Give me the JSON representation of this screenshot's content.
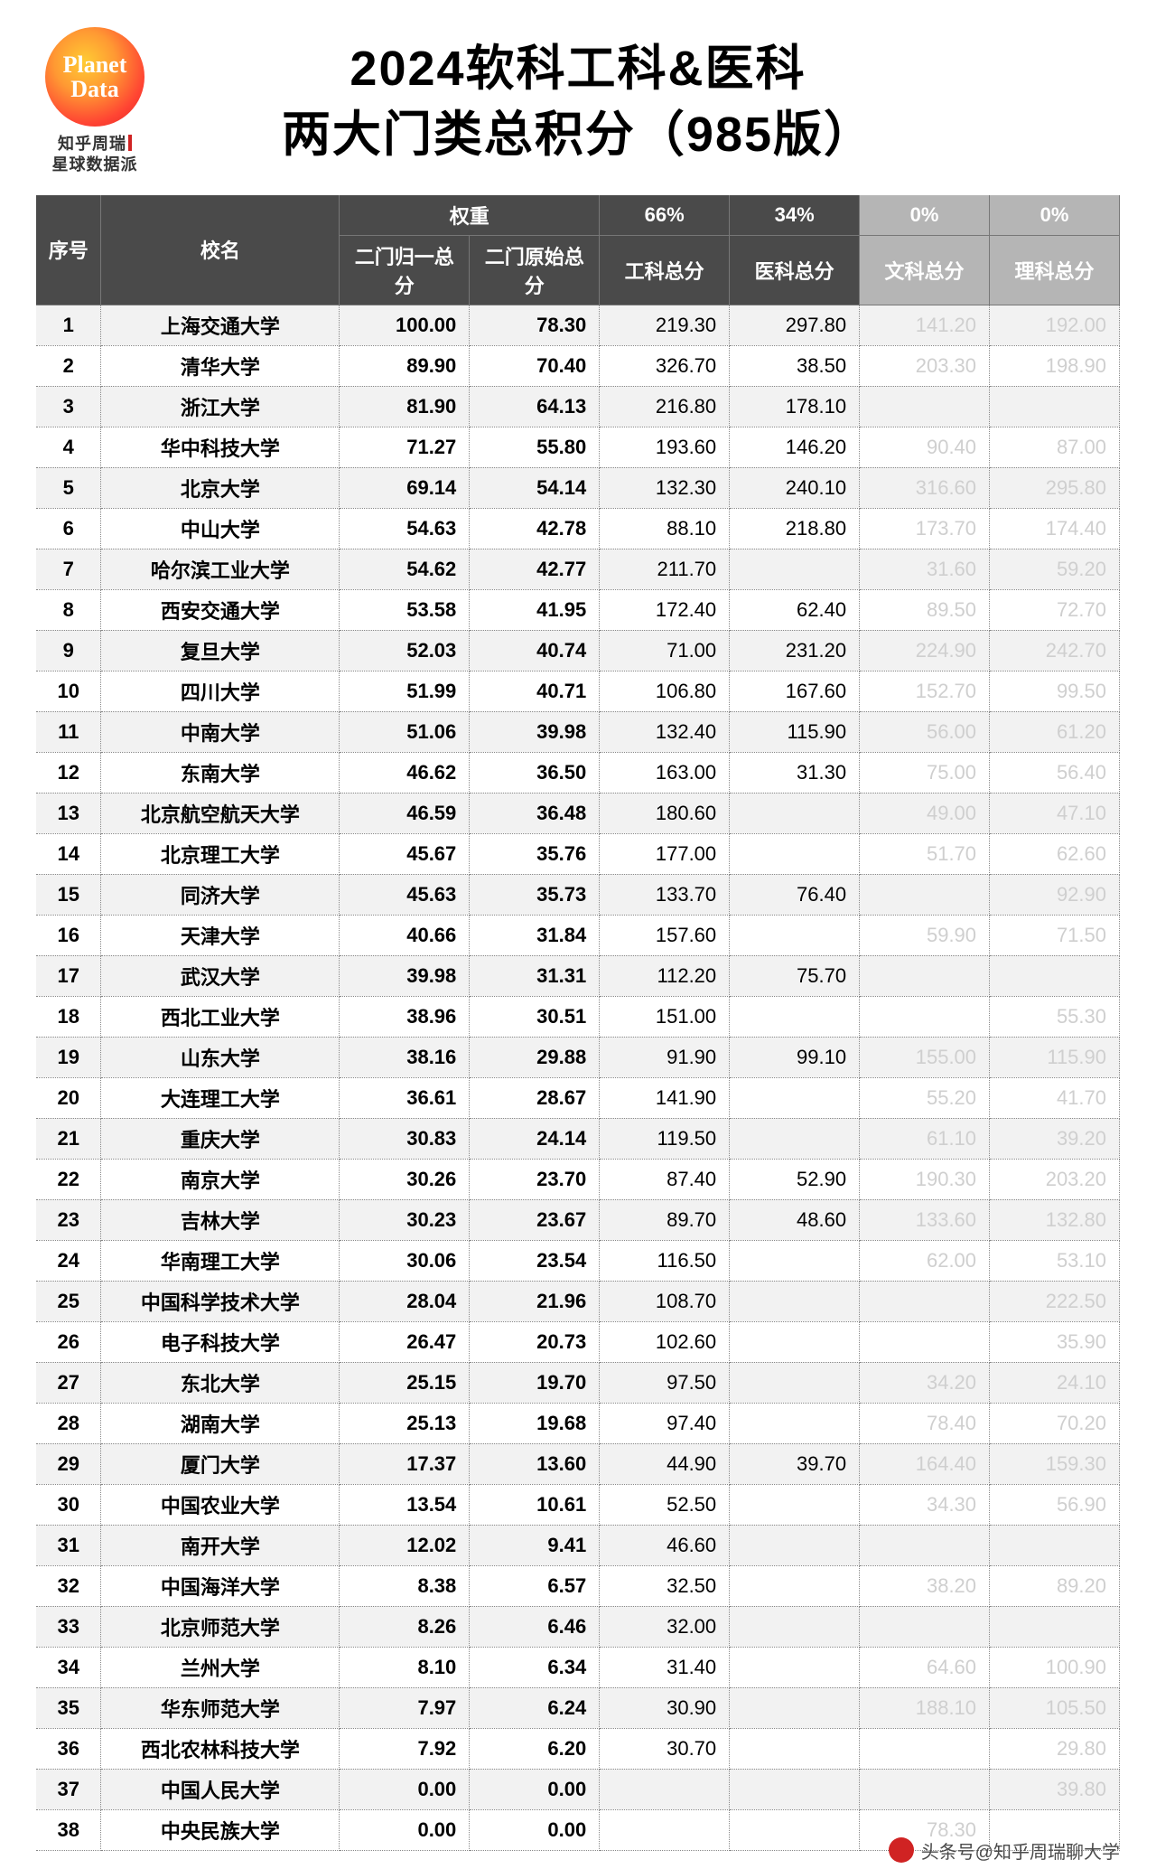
{
  "logo": {
    "circle_line1": "Planet",
    "circle_line2": "Data",
    "sub_line1": "知乎周瑞",
    "sub_line2": "星球数据派"
  },
  "title": {
    "line1": "2024软科工科&医科",
    "line2": "两大门类总积分（985版）"
  },
  "header": {
    "idx": "序号",
    "name": "校名",
    "weight_group": "权重",
    "w1": "二门归一总分",
    "w2": "二门原始总分",
    "eng_pct": "66%",
    "med_pct": "34%",
    "eng": "工科总分",
    "med": "医科总分",
    "lit_pct": "0%",
    "sci_pct": "0%",
    "lit": "文科总分",
    "sci": "理科总分"
  },
  "table": {
    "style": {
      "header_bg": "#4a4a4a",
      "header_fg": "#ffffff",
      "faded_header_bg": "#b5b5b5",
      "row_alt_bg": "#f2f2f2",
      "row_bg": "#ffffff",
      "faded_fg": "#cfcfcf",
      "border_color": "#888888",
      "font_size": 22,
      "bold_cols": [
        "idx",
        "name",
        "w1",
        "w2"
      ],
      "faded_cols": [
        "lit",
        "sci"
      ]
    },
    "columns": [
      "idx",
      "name",
      "w1",
      "w2",
      "eng",
      "med",
      "lit",
      "sci"
    ],
    "rows": [
      {
        "idx": "1",
        "name": "上海交通大学",
        "w1": "100.00",
        "w2": "78.30",
        "eng": "219.30",
        "med": "297.80",
        "lit": "141.20",
        "sci": "192.00"
      },
      {
        "idx": "2",
        "name": "清华大学",
        "w1": "89.90",
        "w2": "70.40",
        "eng": "326.70",
        "med": "38.50",
        "lit": "203.30",
        "sci": "198.90"
      },
      {
        "idx": "3",
        "name": "浙江大学",
        "w1": "81.90",
        "w2": "64.13",
        "eng": "216.80",
        "med": "178.10",
        "lit": "",
        "sci": ""
      },
      {
        "idx": "4",
        "name": "华中科技大学",
        "w1": "71.27",
        "w2": "55.80",
        "eng": "193.60",
        "med": "146.20",
        "lit": "90.40",
        "sci": "87.00"
      },
      {
        "idx": "5",
        "name": "北京大学",
        "w1": "69.14",
        "w2": "54.14",
        "eng": "132.30",
        "med": "240.10",
        "lit": "316.60",
        "sci": "295.80"
      },
      {
        "idx": "6",
        "name": "中山大学",
        "w1": "54.63",
        "w2": "42.78",
        "eng": "88.10",
        "med": "218.80",
        "lit": "173.70",
        "sci": "174.40"
      },
      {
        "idx": "7",
        "name": "哈尔滨工业大学",
        "w1": "54.62",
        "w2": "42.77",
        "eng": "211.70",
        "med": "",
        "lit": "31.60",
        "sci": "59.20"
      },
      {
        "idx": "8",
        "name": "西安交通大学",
        "w1": "53.58",
        "w2": "41.95",
        "eng": "172.40",
        "med": "62.40",
        "lit": "89.50",
        "sci": "72.70"
      },
      {
        "idx": "9",
        "name": "复旦大学",
        "w1": "52.03",
        "w2": "40.74",
        "eng": "71.00",
        "med": "231.20",
        "lit": "224.90",
        "sci": "242.70"
      },
      {
        "idx": "10",
        "name": "四川大学",
        "w1": "51.99",
        "w2": "40.71",
        "eng": "106.80",
        "med": "167.60",
        "lit": "152.70",
        "sci": "99.50"
      },
      {
        "idx": "11",
        "name": "中南大学",
        "w1": "51.06",
        "w2": "39.98",
        "eng": "132.40",
        "med": "115.90",
        "lit": "56.00",
        "sci": "61.20"
      },
      {
        "idx": "12",
        "name": "东南大学",
        "w1": "46.62",
        "w2": "36.50",
        "eng": "163.00",
        "med": "31.30",
        "lit": "75.00",
        "sci": "56.40"
      },
      {
        "idx": "13",
        "name": "北京航空航天大学",
        "w1": "46.59",
        "w2": "36.48",
        "eng": "180.60",
        "med": "",
        "lit": "49.00",
        "sci": "47.10"
      },
      {
        "idx": "14",
        "name": "北京理工大学",
        "w1": "45.67",
        "w2": "35.76",
        "eng": "177.00",
        "med": "",
        "lit": "51.70",
        "sci": "62.60"
      },
      {
        "idx": "15",
        "name": "同济大学",
        "w1": "45.63",
        "w2": "35.73",
        "eng": "133.70",
        "med": "76.40",
        "lit": "",
        "sci": "92.90"
      },
      {
        "idx": "16",
        "name": "天津大学",
        "w1": "40.66",
        "w2": "31.84",
        "eng": "157.60",
        "med": "",
        "lit": "59.90",
        "sci": "71.50"
      },
      {
        "idx": "17",
        "name": "武汉大学",
        "w1": "39.98",
        "w2": "31.31",
        "eng": "112.20",
        "med": "75.70",
        "lit": "",
        "sci": ""
      },
      {
        "idx": "18",
        "name": "西北工业大学",
        "w1": "38.96",
        "w2": "30.51",
        "eng": "151.00",
        "med": "",
        "lit": "",
        "sci": "55.30"
      },
      {
        "idx": "19",
        "name": "山东大学",
        "w1": "38.16",
        "w2": "29.88",
        "eng": "91.90",
        "med": "99.10",
        "lit": "155.00",
        "sci": "115.90"
      },
      {
        "idx": "20",
        "name": "大连理工大学",
        "w1": "36.61",
        "w2": "28.67",
        "eng": "141.90",
        "med": "",
        "lit": "55.20",
        "sci": "41.70"
      },
      {
        "idx": "21",
        "name": "重庆大学",
        "w1": "30.83",
        "w2": "24.14",
        "eng": "119.50",
        "med": "",
        "lit": "61.10",
        "sci": "39.20"
      },
      {
        "idx": "22",
        "name": "南京大学",
        "w1": "30.26",
        "w2": "23.70",
        "eng": "87.40",
        "med": "52.90",
        "lit": "190.30",
        "sci": "203.20"
      },
      {
        "idx": "23",
        "name": "吉林大学",
        "w1": "30.23",
        "w2": "23.67",
        "eng": "89.70",
        "med": "48.60",
        "lit": "133.60",
        "sci": "132.80"
      },
      {
        "idx": "24",
        "name": "华南理工大学",
        "w1": "30.06",
        "w2": "23.54",
        "eng": "116.50",
        "med": "",
        "lit": "62.00",
        "sci": "53.10"
      },
      {
        "idx": "25",
        "name": "中国科学技术大学",
        "w1": "28.04",
        "w2": "21.96",
        "eng": "108.70",
        "med": "",
        "lit": "",
        "sci": "222.50"
      },
      {
        "idx": "26",
        "name": "电子科技大学",
        "w1": "26.47",
        "w2": "20.73",
        "eng": "102.60",
        "med": "",
        "lit": "",
        "sci": "35.90"
      },
      {
        "idx": "27",
        "name": "东北大学",
        "w1": "25.15",
        "w2": "19.70",
        "eng": "97.50",
        "med": "",
        "lit": "34.20",
        "sci": "24.10"
      },
      {
        "idx": "28",
        "name": "湖南大学",
        "w1": "25.13",
        "w2": "19.68",
        "eng": "97.40",
        "med": "",
        "lit": "78.40",
        "sci": "70.20"
      },
      {
        "idx": "29",
        "name": "厦门大学",
        "w1": "17.37",
        "w2": "13.60",
        "eng": "44.90",
        "med": "39.70",
        "lit": "164.40",
        "sci": "159.30"
      },
      {
        "idx": "30",
        "name": "中国农业大学",
        "w1": "13.54",
        "w2": "10.61",
        "eng": "52.50",
        "med": "",
        "lit": "34.30",
        "sci": "56.90"
      },
      {
        "idx": "31",
        "name": "南开大学",
        "w1": "12.02",
        "w2": "9.41",
        "eng": "46.60",
        "med": "",
        "lit": "",
        "sci": ""
      },
      {
        "idx": "32",
        "name": "中国海洋大学",
        "w1": "8.38",
        "w2": "6.57",
        "eng": "32.50",
        "med": "",
        "lit": "38.20",
        "sci": "89.20"
      },
      {
        "idx": "33",
        "name": "北京师范大学",
        "w1": "8.26",
        "w2": "6.46",
        "eng": "32.00",
        "med": "",
        "lit": "",
        "sci": ""
      },
      {
        "idx": "34",
        "name": "兰州大学",
        "w1": "8.10",
        "w2": "6.34",
        "eng": "31.40",
        "med": "",
        "lit": "64.60",
        "sci": "100.90"
      },
      {
        "idx": "35",
        "name": "华东师范大学",
        "w1": "7.97",
        "w2": "6.24",
        "eng": "30.90",
        "med": "",
        "lit": "188.10",
        "sci": "105.50"
      },
      {
        "idx": "36",
        "name": "西北农林科技大学",
        "w1": "7.92",
        "w2": "6.20",
        "eng": "30.70",
        "med": "",
        "lit": "",
        "sci": "29.80"
      },
      {
        "idx": "37",
        "name": "中国人民大学",
        "w1": "0.00",
        "w2": "0.00",
        "eng": "",
        "med": "",
        "lit": "",
        "sci": "39.80"
      },
      {
        "idx": "38",
        "name": "中央民族大学",
        "w1": "0.00",
        "w2": "0.00",
        "eng": "",
        "med": "",
        "lit": "78.30",
        "sci": ""
      }
    ]
  },
  "footer": {
    "credit_prefix": "头条号@",
    "credit_name": "知乎周瑞聊大学"
  }
}
